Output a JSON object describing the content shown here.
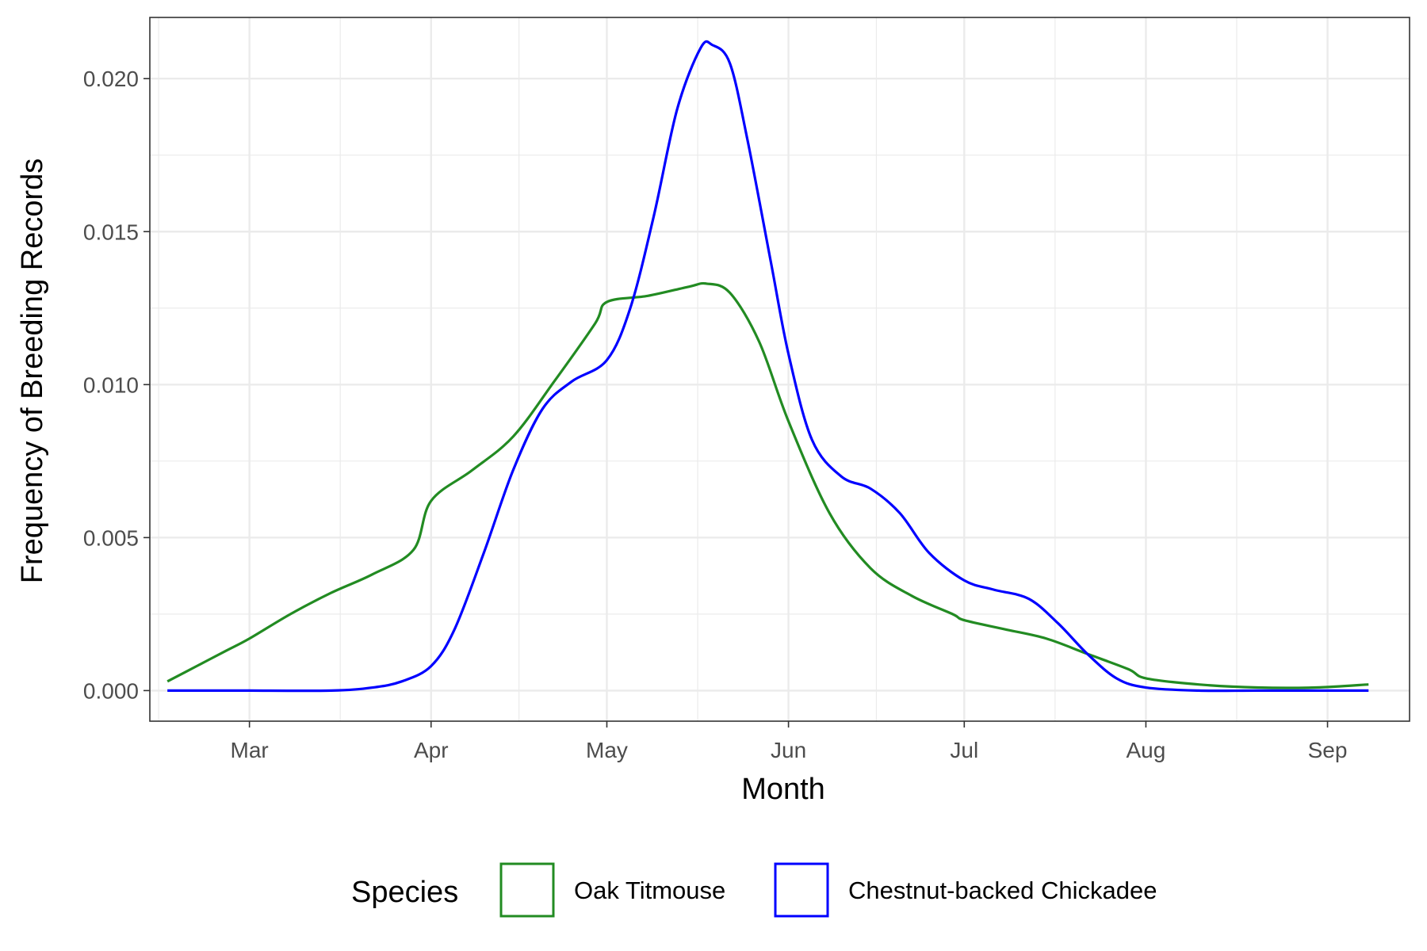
{
  "chart_data": {
    "type": "line",
    "xlabel": "Month",
    "ylabel": "Frequency of Breeding Records",
    "x_ticks": [
      "Mar",
      "Apr",
      "May",
      "Jun",
      "Jul",
      "Aug",
      "Sep"
    ],
    "x_tick_dates": [
      "2021-03-01",
      "2021-04-01",
      "2021-05-01",
      "2021-06-01",
      "2021-07-01",
      "2021-08-01",
      "2021-09-01"
    ],
    "x_range": [
      "2021-02-12",
      "2021-09-15"
    ],
    "y_ticks": [
      "0.000",
      "0.005",
      "0.010",
      "0.015",
      "0.020"
    ],
    "y_tick_values": [
      0,
      0.005,
      0.01,
      0.015,
      0.02
    ],
    "ylim": [
      -0.001,
      0.022
    ],
    "grid": true,
    "legend": {
      "title": "Species",
      "position": "bottom"
    },
    "series": [
      {
        "name": "Oak Titmouse",
        "color": "#228B22",
        "points": [
          [
            "2021-02-15",
            0.0003
          ],
          [
            "2021-02-20",
            0.0008
          ],
          [
            "2021-02-25",
            0.0013
          ],
          [
            "2021-03-01",
            0.0017
          ],
          [
            "2021-03-08",
            0.0025
          ],
          [
            "2021-03-15",
            0.0032
          ],
          [
            "2021-03-22",
            0.0038
          ],
          [
            "2021-03-29",
            0.0046
          ],
          [
            "2021-04-01",
            0.0062
          ],
          [
            "2021-04-08",
            0.0072
          ],
          [
            "2021-04-15",
            0.0083
          ],
          [
            "2021-04-22",
            0.0101
          ],
          [
            "2021-04-29",
            0.012
          ],
          [
            "2021-05-01",
            0.0127
          ],
          [
            "2021-05-08",
            0.0129
          ],
          [
            "2021-05-15",
            0.0132
          ],
          [
            "2021-05-18",
            0.0133
          ],
          [
            "2021-05-22",
            0.013
          ],
          [
            "2021-05-27",
            0.0114
          ],
          [
            "2021-06-01",
            0.0088
          ],
          [
            "2021-06-08",
            0.0058
          ],
          [
            "2021-06-15",
            0.004
          ],
          [
            "2021-06-22",
            0.0031
          ],
          [
            "2021-06-29",
            0.0025
          ],
          [
            "2021-07-01",
            0.0023
          ],
          [
            "2021-07-08",
            0.002
          ],
          [
            "2021-07-15",
            0.0017
          ],
          [
            "2021-07-22",
            0.0012
          ],
          [
            "2021-07-29",
            0.0007
          ],
          [
            "2021-08-01",
            0.0004
          ],
          [
            "2021-08-10",
            0.0002
          ],
          [
            "2021-08-20",
            0.0001
          ],
          [
            "2021-08-30",
            0.0001
          ],
          [
            "2021-09-08",
            0.0002
          ]
        ]
      },
      {
        "name": "Chestnut-backed Chickadee",
        "color": "#0000FF",
        "points": [
          [
            "2021-02-15",
            0.0
          ],
          [
            "2021-02-25",
            0.0
          ],
          [
            "2021-03-01",
            0.0
          ],
          [
            "2021-03-15",
            0.0
          ],
          [
            "2021-03-22",
            0.0001
          ],
          [
            "2021-03-27",
            0.0003
          ],
          [
            "2021-04-01",
            0.0008
          ],
          [
            "2021-04-05",
            0.002
          ],
          [
            "2021-04-10",
            0.0045
          ],
          [
            "2021-04-15",
            0.0072
          ],
          [
            "2021-04-20",
            0.0092
          ],
          [
            "2021-04-25",
            0.0101
          ],
          [
            "2021-05-01",
            0.0108
          ],
          [
            "2021-05-05",
            0.0125
          ],
          [
            "2021-05-09",
            0.0155
          ],
          [
            "2021-05-13",
            0.019
          ],
          [
            "2021-05-17",
            0.021
          ],
          [
            "2021-05-19",
            0.0211
          ],
          [
            "2021-05-22",
            0.0205
          ],
          [
            "2021-05-25",
            0.018
          ],
          [
            "2021-05-29",
            0.014
          ],
          [
            "2021-06-01",
            0.011
          ],
          [
            "2021-06-05",
            0.0082
          ],
          [
            "2021-06-10",
            0.007
          ],
          [
            "2021-06-15",
            0.0066
          ],
          [
            "2021-06-20",
            0.0058
          ],
          [
            "2021-06-25",
            0.0045
          ],
          [
            "2021-07-01",
            0.0036
          ],
          [
            "2021-07-06",
            0.0033
          ],
          [
            "2021-07-12",
            0.003
          ],
          [
            "2021-07-17",
            0.0022
          ],
          [
            "2021-07-22",
            0.0012
          ],
          [
            "2021-07-27",
            0.0004
          ],
          [
            "2021-08-01",
            0.0001
          ],
          [
            "2021-08-10",
            0.0
          ],
          [
            "2021-08-20",
            0.0
          ],
          [
            "2021-09-01",
            0.0
          ],
          [
            "2021-09-08",
            0.0
          ]
        ]
      }
    ]
  }
}
